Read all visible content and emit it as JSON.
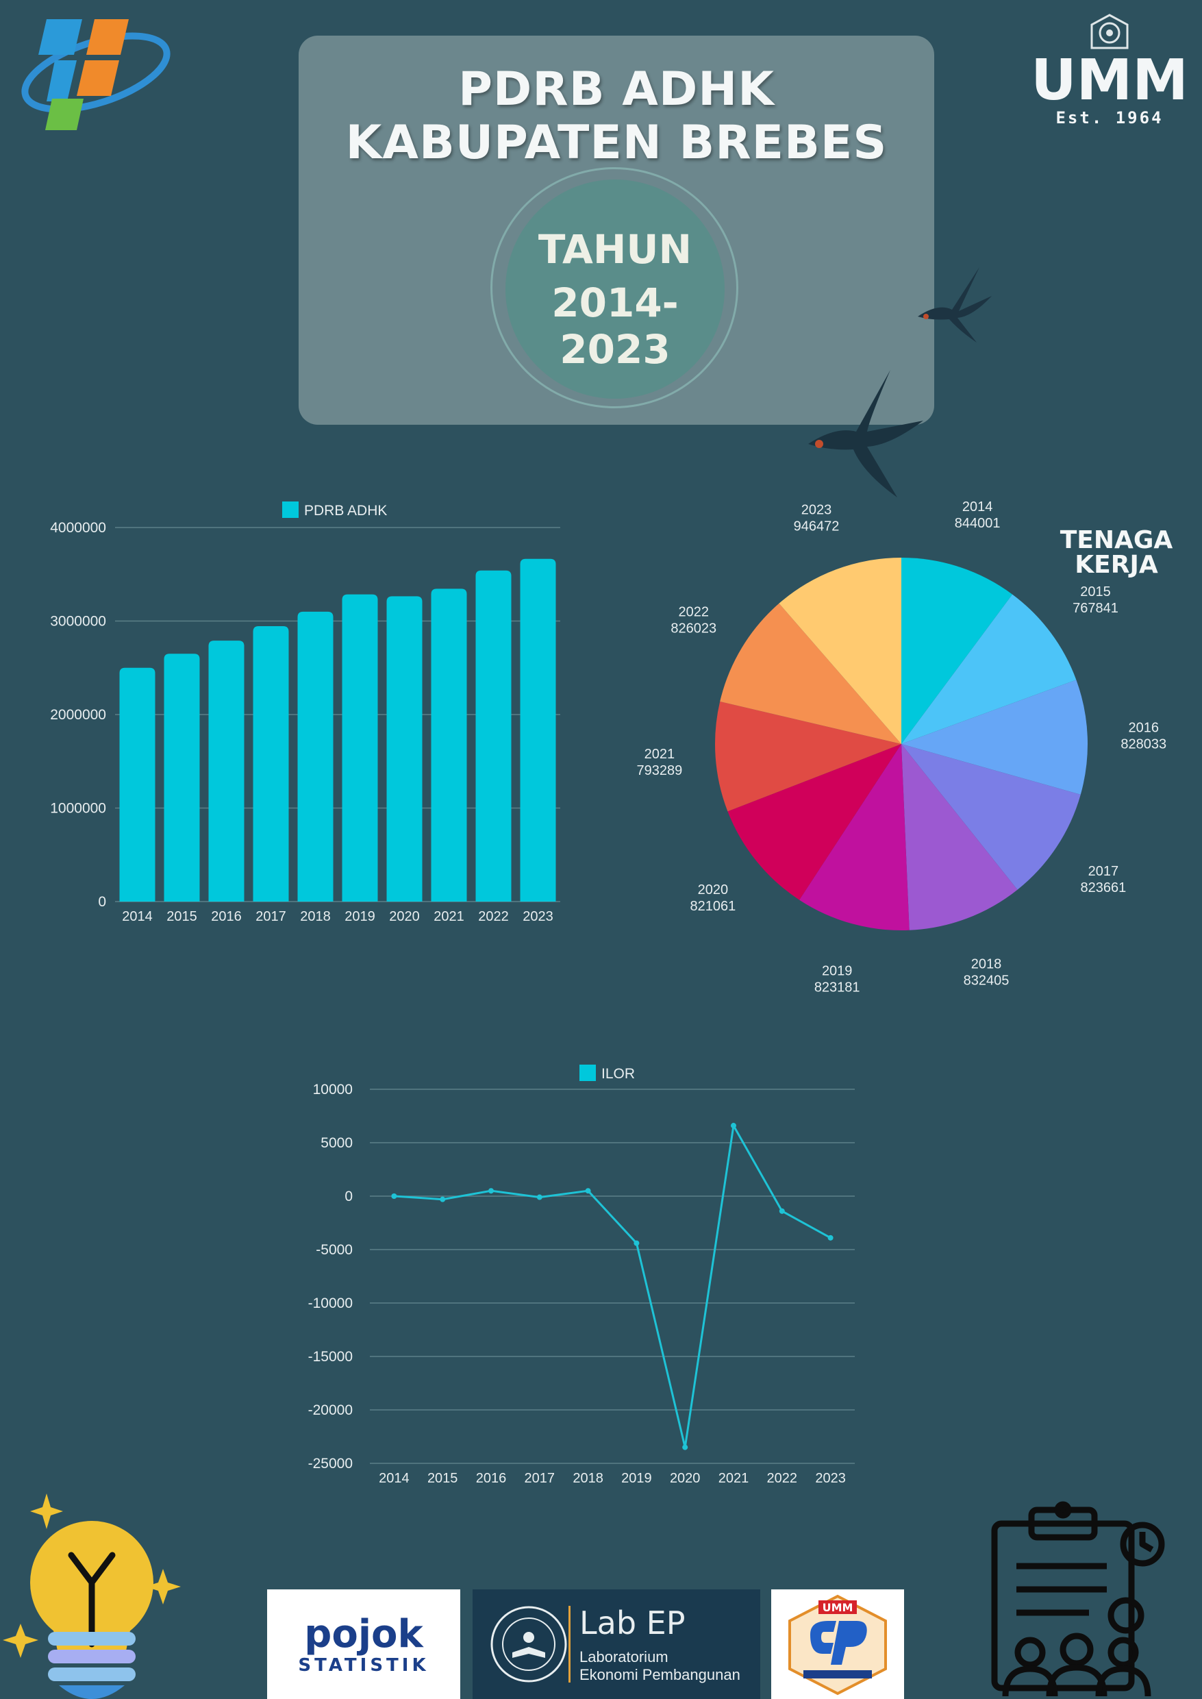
{
  "title": {
    "line1": "PDRB ADHK",
    "line2": "KABUPATEN BREBES"
  },
  "period": {
    "label": "TAHUN",
    "range": "2014-2023"
  },
  "umm_logo": {
    "name": "UMM",
    "est": "Est. 1964"
  },
  "pie_heading": {
    "line1": "TENAGA",
    "line2": "KERJA"
  },
  "footer": {
    "pojok_line1": "pojok",
    "pojok_line2": "STATISTIK",
    "lab_brand": "Lab EP",
    "lab_line1": "Laboratorium",
    "lab_line2": "Ekonomi Pembangunan",
    "ep_brand": "UMM"
  },
  "colors": {
    "background": "#2d515e",
    "bar": "#00c8dc",
    "line": "#1ec3d6"
  },
  "chart_data": [
    {
      "type": "bar",
      "title": "",
      "legend": "PDRB ADHK",
      "legend_position": "top",
      "categories": [
        "2014",
        "2015",
        "2016",
        "2017",
        "2018",
        "2019",
        "2020",
        "2021",
        "2022",
        "2023"
      ],
      "values": [
        2500000,
        2650000,
        2790000,
        2945000,
        3100000,
        3285000,
        3265000,
        3345000,
        3540000,
        3665000
      ],
      "ylim": [
        0,
        4000000
      ],
      "yticks": [
        "0",
        "1000000",
        "2000000",
        "3000000",
        "4000000"
      ],
      "grid": true
    },
    {
      "type": "pie",
      "title": "TENAGA KERJA",
      "slices": [
        {
          "label": "2014",
          "value": 844001,
          "color": "#00c8dc"
        },
        {
          "label": "2015",
          "value": 767841,
          "color": "#4cc4f8"
        },
        {
          "label": "2016",
          "value": 828033,
          "color": "#66a6f6"
        },
        {
          "label": "2017",
          "value": 823661,
          "color": "#7b7ee6"
        },
        {
          "label": "2018",
          "value": 832405,
          "color": "#9c59d1"
        },
        {
          "label": "2019",
          "value": 823181,
          "color": "#c0119e"
        },
        {
          "label": "2020",
          "value": 821061,
          "color": "#d0005a"
        },
        {
          "label": "2021",
          "value": 793289,
          "color": "#e04b44"
        },
        {
          "label": "2022",
          "value": 826023,
          "color": "#f59050"
        },
        {
          "label": "2023",
          "value": 946472,
          "color": "#ffca70"
        }
      ]
    },
    {
      "type": "line",
      "title": "",
      "legend": "ILOR",
      "legend_position": "top",
      "x": [
        "2014",
        "2015",
        "2016",
        "2017",
        "2018",
        "2019",
        "2020",
        "2021",
        "2022",
        "2023"
      ],
      "values": [
        0,
        -300,
        500,
        -100,
        500,
        -4400,
        -23500,
        6600,
        -1400,
        -3900
      ],
      "ylim": [
        -25000,
        10000
      ],
      "yticks": [
        "-25000",
        "-20000",
        "-15000",
        "-10000",
        "-5000",
        "0",
        "5000",
        "10000"
      ],
      "grid": true
    }
  ]
}
